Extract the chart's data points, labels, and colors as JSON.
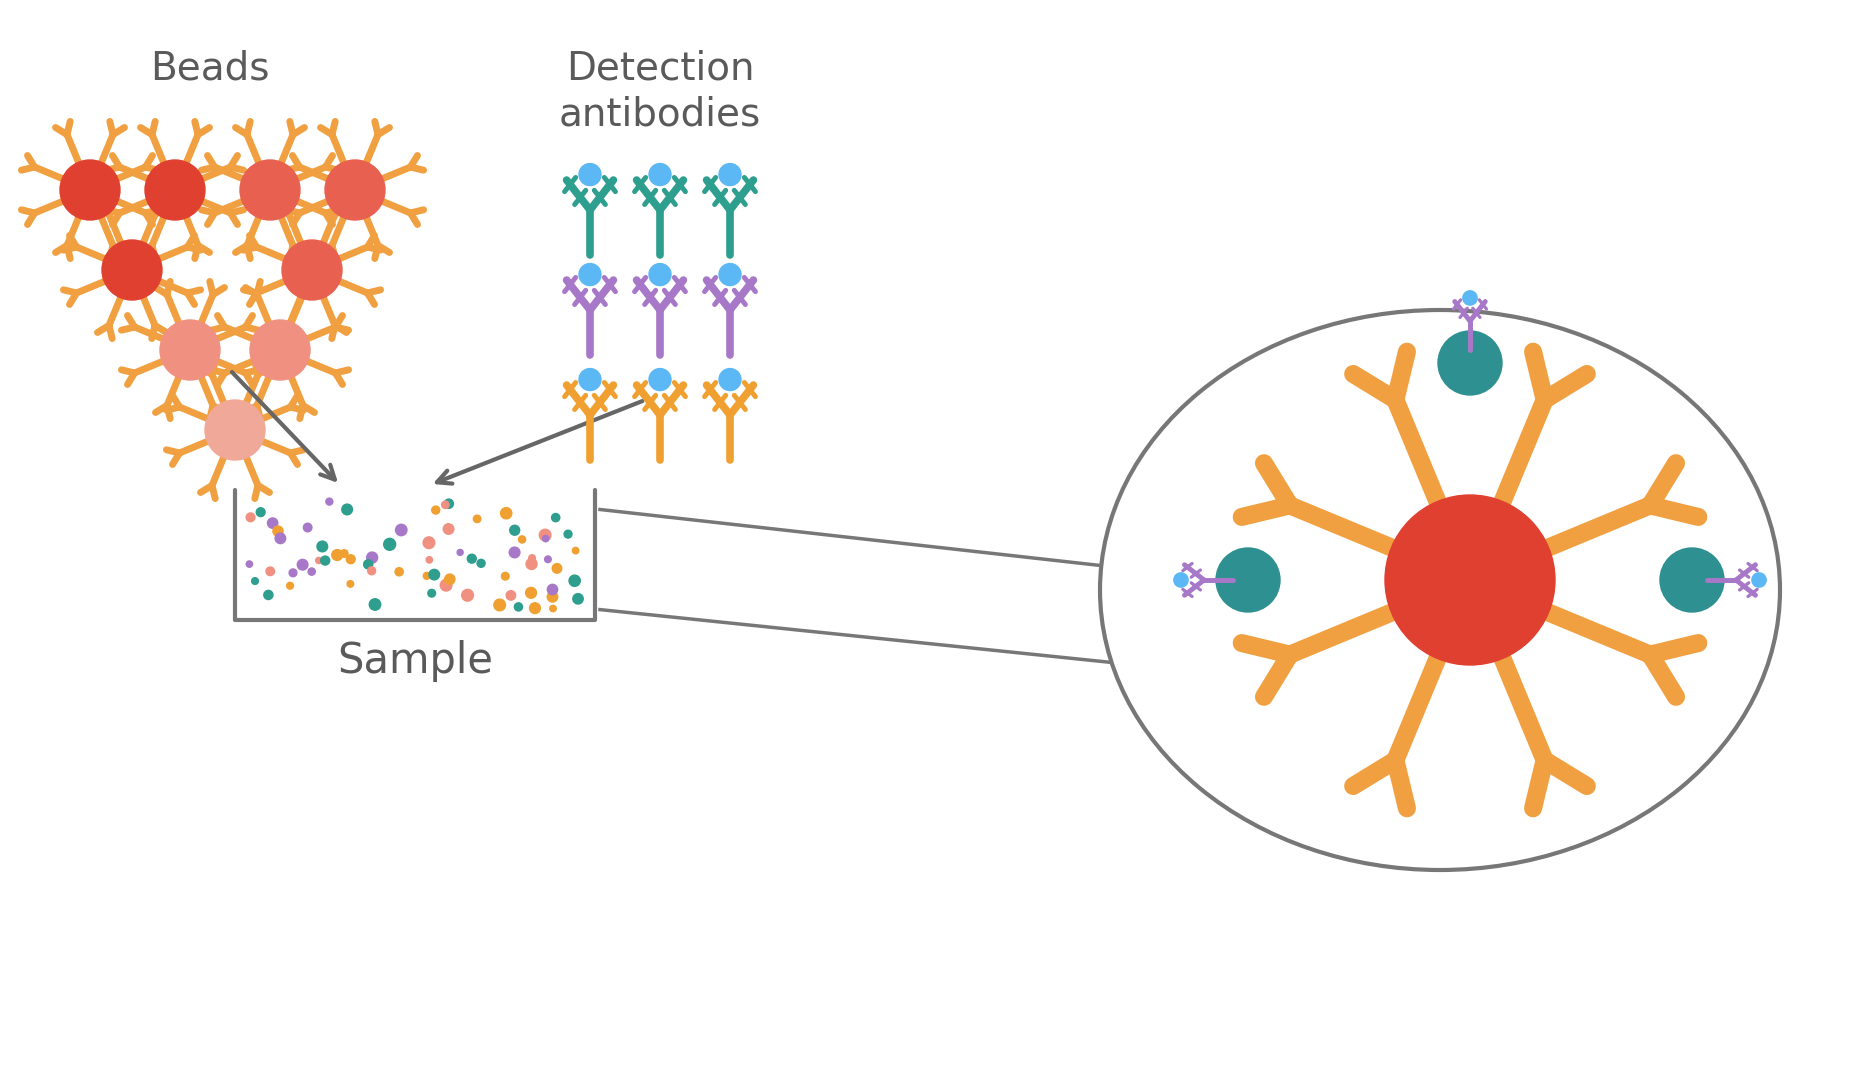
{
  "bg_color": "#ffffff",
  "text_color": "#5a5a5a",
  "bead_arm_color": "#F0A040",
  "bead_dark": "#E04030",
  "bead_med": "#E86050",
  "bead_light": "#F09080",
  "bead_vlight": "#F0A898",
  "ab_teal": "#2E9E8E",
  "ab_purple": "#A878C8",
  "ab_orange": "#F0A030",
  "ab_dot_color": "#5BB8F5",
  "analyte_teal": "#2E9090",
  "arrow_color": "#666666",
  "label_beads": "Beads",
  "label_detection": "Detection\nantibodies",
  "label_sample": "Sample",
  "font_size_label": 28
}
